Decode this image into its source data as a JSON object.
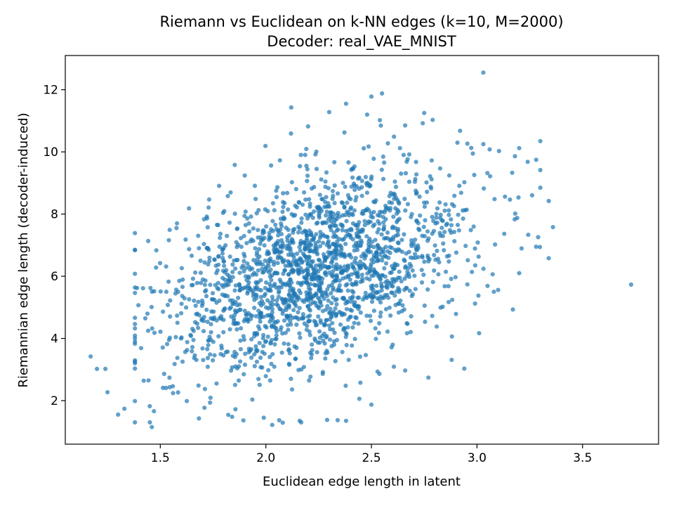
{
  "chart_data": {
    "type": "scatter",
    "title": "Riemann vs Euclidean on k-NN edges (k=10, M=2000)",
    "subtitle": "Decoder: real_VAE_MNIST",
    "xlabel": "Euclidean edge length in latent",
    "ylabel": "Riemannian edge length (decoder-induced)",
    "xlim": [
      1.05,
      3.86
    ],
    "ylim": [
      0.6,
      13.1
    ],
    "xticks": [
      {
        "value": 1.5,
        "label": "1.5"
      },
      {
        "value": 2.0,
        "label": "2.0"
      },
      {
        "value": 2.5,
        "label": "2.5"
      },
      {
        "value": 3.0,
        "label": "3.0"
      },
      {
        "value": 3.5,
        "label": "3.5"
      }
    ],
    "yticks": [
      {
        "value": 2,
        "label": "2"
      },
      {
        "value": 4,
        "label": "4"
      },
      {
        "value": 6,
        "label": "6"
      },
      {
        "value": 8,
        "label": "8"
      },
      {
        "value": 10,
        "label": "10"
      },
      {
        "value": 12,
        "label": "12"
      }
    ],
    "grid": false,
    "legend": false,
    "marker_color": "#1f77b4",
    "marker_alpha": 0.7,
    "outliers": [
      [
        1.17,
        3.42
      ],
      [
        1.2,
        3.02
      ],
      [
        1.24,
        3.02
      ],
      [
        1.25,
        2.27
      ],
      [
        1.3,
        1.55
      ],
      [
        1.33,
        1.74
      ],
      [
        1.46,
        1.15
      ],
      [
        1.47,
        1.66
      ],
      [
        1.45,
        1.82
      ],
      [
        1.48,
        6.28
      ],
      [
        1.62,
        7.18
      ],
      [
        1.72,
        7.92
      ],
      [
        1.82,
        8.58
      ],
      [
        1.84,
        1.48
      ],
      [
        1.9,
        9.24
      ],
      [
        2.12,
        11.43
      ],
      [
        2.2,
        10.82
      ],
      [
        2.3,
        11.28
      ],
      [
        2.38,
        11.55
      ],
      [
        2.5,
        11.78
      ],
      [
        2.55,
        11.88
      ],
      [
        2.54,
        11.02
      ],
      [
        2.66,
        10.85
      ],
      [
        2.75,
        11.25
      ],
      [
        2.79,
        11.03
      ],
      [
        2.92,
        10.68
      ],
      [
        3.03,
        12.55
      ],
      [
        3.03,
        10.25
      ],
      [
        3.06,
        10.08
      ],
      [
        3.2,
        10.12
      ],
      [
        3.24,
        9.68
      ],
      [
        3.18,
        9.86
      ],
      [
        3.34,
        8.42
      ],
      [
        3.36,
        7.58
      ],
      [
        3.28,
        6.95
      ],
      [
        3.34,
        6.58
      ],
      [
        3.73,
        5.73
      ],
      [
        3.2,
        6.1
      ],
      [
        3.17,
        4.93
      ],
      [
        3.1,
        5.56
      ],
      [
        3.08,
        5.5
      ],
      [
        3.05,
        5.69
      ],
      [
        3.01,
        4.17
      ],
      [
        2.94,
        3.03
      ],
      [
        2.88,
        3.31
      ],
      [
        2.77,
        2.74
      ],
      [
        2.66,
        2.97
      ],
      [
        2.5,
        1.87
      ],
      [
        2.38,
        1.35
      ],
      [
        2.34,
        1.37
      ],
      [
        2.16,
        1.35
      ],
      [
        2.08,
        1.29
      ],
      [
        1.99,
        1.45
      ],
      [
        2.03,
        1.22
      ],
      [
        2.29,
        1.38
      ]
    ],
    "cluster": {
      "count": 1945,
      "x_center": 2.24,
      "x_spread": 0.36,
      "y_intercept": 1.8,
      "y_slope": 1.96,
      "y_spread": 1.48
    }
  }
}
